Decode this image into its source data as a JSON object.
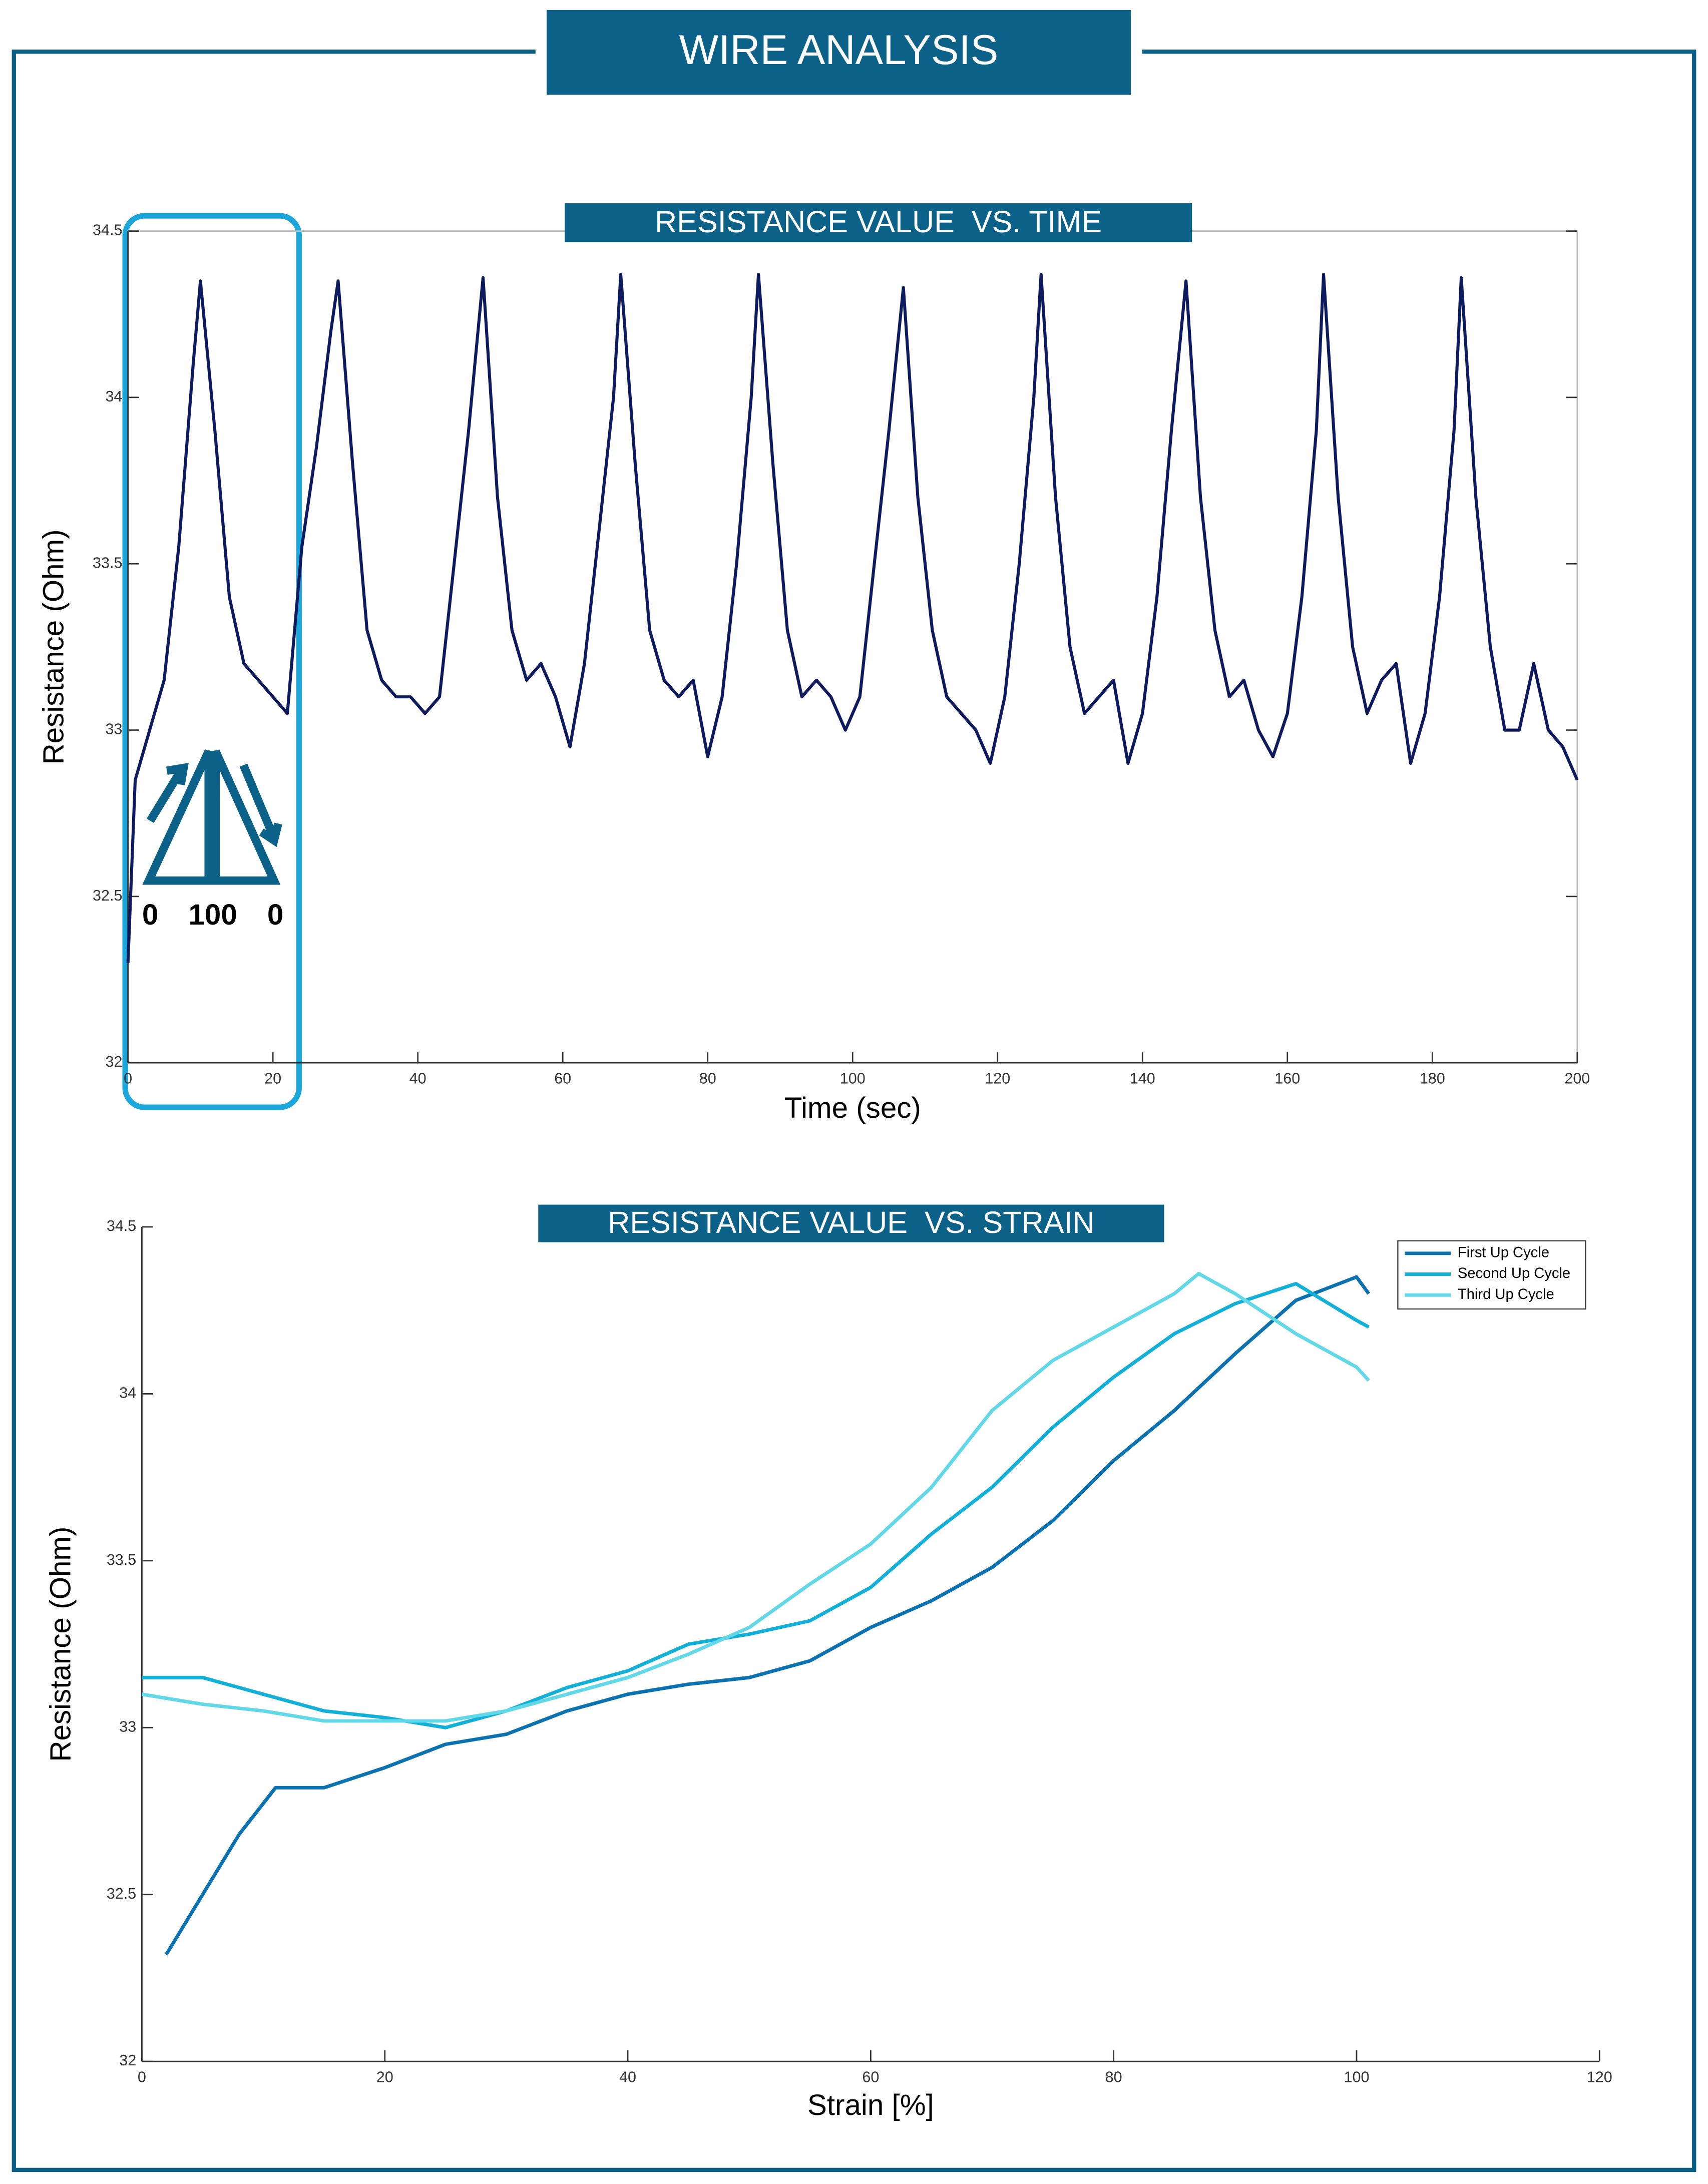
{
  "header": {
    "title": "WIRE ANALYSIS"
  },
  "chart_data": [
    {
      "type": "line",
      "title": "RESISTANCE VALUE  VS. TIME",
      "xlabel": "Time (sec)",
      "ylabel": "Resistance (Ohm)",
      "xlim": [
        0,
        200
      ],
      "xticks": [
        0,
        20,
        40,
        60,
        80,
        100,
        120,
        140,
        160,
        180,
        200
      ],
      "ylim": [
        32,
        34.5
      ],
      "yticks": [
        32,
        32.5,
        33,
        33.5,
        34,
        34.5
      ],
      "frame": true,
      "annotations": [
        "0",
        "100",
        "0"
      ],
      "series": [
        {
          "name": "Resistance",
          "color": "#0d1b5e",
          "x": [
            0,
            1,
            3,
            5,
            7,
            9,
            10,
            12,
            14,
            16,
            18,
            20,
            22,
            24,
            26,
            28,
            29,
            31,
            33,
            35,
            37,
            39,
            41,
            43,
            45,
            47,
            49,
            51,
            53,
            55,
            57,
            59,
            61,
            63,
            65,
            67,
            68,
            70,
            72,
            74,
            76,
            78,
            80,
            82,
            84,
            86,
            87,
            89,
            91,
            93,
            95,
            97,
            99,
            101,
            103,
            105,
            107,
            109,
            111,
            113,
            115,
            117,
            119,
            121,
            123,
            125,
            126,
            128,
            130,
            132,
            134,
            136,
            138,
            140,
            142,
            144,
            146,
            148,
            150,
            152,
            154,
            156,
            158,
            160,
            162,
            164,
            165,
            167,
            169,
            171,
            173,
            175,
            177,
            179,
            181,
            183,
            184,
            186,
            188,
            190,
            192,
            194,
            196,
            198,
            200
          ],
          "values": [
            32.3,
            32.85,
            33.0,
            33.15,
            33.55,
            34.1,
            34.35,
            33.9,
            33.4,
            33.2,
            33.15,
            33.1,
            33.05,
            33.55,
            33.85,
            34.2,
            34.35,
            33.8,
            33.3,
            33.15,
            33.1,
            33.1,
            33.05,
            33.1,
            33.5,
            33.9,
            34.36,
            33.7,
            33.3,
            33.15,
            33.2,
            33.1,
            32.95,
            33.2,
            33.6,
            34.0,
            34.37,
            33.8,
            33.3,
            33.15,
            33.1,
            33.15,
            32.92,
            33.1,
            33.5,
            34.0,
            34.37,
            33.8,
            33.3,
            33.1,
            33.15,
            33.1,
            33.0,
            33.1,
            33.5,
            33.9,
            34.33,
            33.7,
            33.3,
            33.1,
            33.05,
            33.0,
            32.9,
            33.1,
            33.5,
            34.0,
            34.37,
            33.7,
            33.25,
            33.05,
            33.1,
            33.15,
            32.9,
            33.05,
            33.4,
            33.9,
            34.35,
            33.7,
            33.3,
            33.1,
            33.15,
            33.0,
            32.92,
            33.05,
            33.4,
            33.9,
            34.37,
            33.7,
            33.25,
            33.05,
            33.15,
            33.2,
            32.9,
            33.05,
            33.4,
            33.9,
            34.36,
            33.7,
            33.25,
            33.0,
            33.0,
            33.2,
            33.0,
            32.95,
            32.85
          ]
        }
      ]
    },
    {
      "type": "line",
      "title": "RESISTANCE VALUE  VS. STRAIN",
      "xlabel": "Strain [%]",
      "ylabel": "Resistance (Ohm)",
      "xlim": [
        0,
        120
      ],
      "xticks": [
        0,
        20,
        40,
        60,
        80,
        100,
        120
      ],
      "ylim": [
        32,
        34.5
      ],
      "yticks": [
        32,
        32.5,
        33,
        33.5,
        34,
        34.5
      ],
      "frame": false,
      "legend": "upper right",
      "series": [
        {
          "name": "First Up Cycle",
          "color": "#0a72b0",
          "x": [
            2,
            5,
            8,
            11,
            15,
            20,
            25,
            30,
            35,
            40,
            45,
            50,
            55,
            60,
            65,
            70,
            75,
            80,
            85,
            90,
            95,
            100,
            101
          ],
          "values": [
            32.32,
            32.5,
            32.68,
            32.82,
            32.82,
            32.88,
            32.95,
            32.98,
            33.05,
            33.1,
            33.13,
            33.15,
            33.2,
            33.3,
            33.38,
            33.48,
            33.62,
            33.8,
            33.95,
            34.12,
            34.28,
            34.35,
            34.3
          ]
        },
        {
          "name": "Second Up Cycle",
          "color": "#10b0d8",
          "x": [
            0,
            5,
            10,
            15,
            20,
            25,
            30,
            35,
            40,
            45,
            50,
            55,
            60,
            65,
            70,
            75,
            80,
            85,
            90,
            95,
            100,
            101
          ],
          "values": [
            33.15,
            33.15,
            33.1,
            33.05,
            33.03,
            33.0,
            33.05,
            33.12,
            33.17,
            33.25,
            33.28,
            33.32,
            33.42,
            33.58,
            33.72,
            33.9,
            34.05,
            34.18,
            34.27,
            34.33,
            34.22,
            34.2
          ]
        },
        {
          "name": "Third Up Cycle",
          "color": "#60d8e8",
          "x": [
            0,
            5,
            10,
            15,
            20,
            25,
            30,
            35,
            40,
            45,
            50,
            55,
            60,
            65,
            70,
            75,
            80,
            85,
            87,
            90,
            95,
            100,
            101
          ],
          "values": [
            33.1,
            33.07,
            33.05,
            33.02,
            33.02,
            33.02,
            33.05,
            33.1,
            33.15,
            33.22,
            33.3,
            33.43,
            33.55,
            33.72,
            33.95,
            34.1,
            34.2,
            34.3,
            34.36,
            34.3,
            34.18,
            34.08,
            34.04
          ]
        }
      ]
    }
  ]
}
